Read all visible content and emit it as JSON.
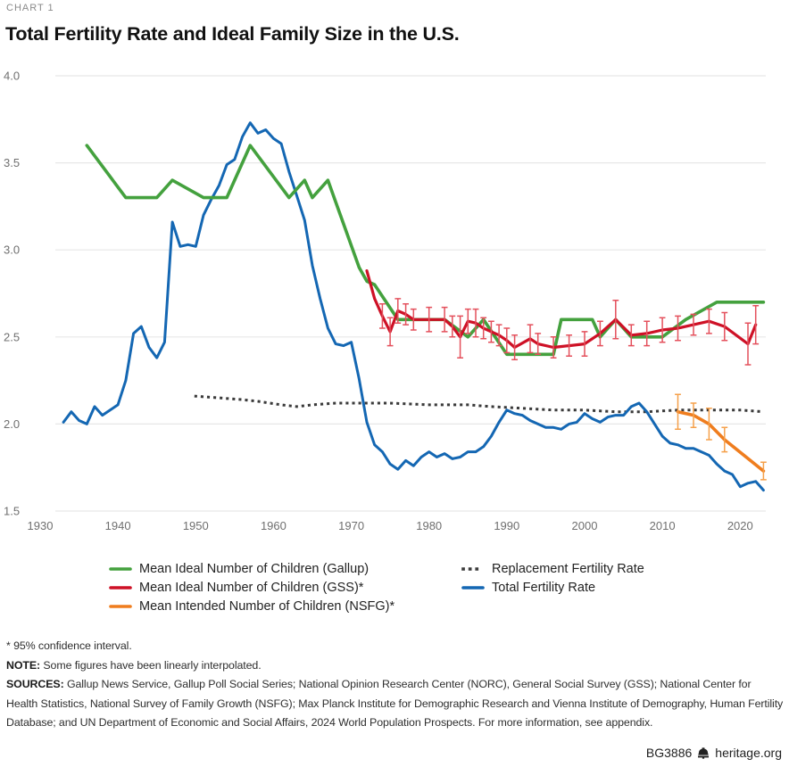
{
  "header": {
    "kicker": "CHART 1",
    "title": "Total Fertility Rate and Ideal Family Size in the U.S."
  },
  "chart_data": {
    "type": "line",
    "title": "Total Fertility Rate and Ideal Family Size in the U.S.",
    "xlabel": "",
    "ylabel": "",
    "xlim": [
      1930,
      2024
    ],
    "ylim": [
      1.5,
      4.0
    ],
    "x_ticks": [
      1930,
      1940,
      1950,
      1960,
      1970,
      1980,
      1990,
      2000,
      2010,
      2020
    ],
    "y_ticks": [
      4.0,
      3.5,
      3.0,
      2.5,
      2.0,
      1.5
    ],
    "grid": "horizontal-only",
    "legend_position": "bottom",
    "series": [
      {
        "name": "Mean Ideal Number of Children (Gallup)",
        "slug": "gallup-ideal",
        "color": "#44a13e",
        "style": "solid",
        "width": 3.6,
        "points": [
          [
            1936,
            3.6
          ],
          [
            1941,
            3.3
          ],
          [
            1945,
            3.3
          ],
          [
            1947,
            3.4
          ],
          [
            1951,
            3.3
          ],
          [
            1954,
            3.3
          ],
          [
            1957,
            3.6
          ],
          [
            1962,
            3.3
          ],
          [
            1964,
            3.4
          ],
          [
            1965,
            3.3
          ],
          [
            1967,
            3.4
          ],
          [
            1971,
            2.9
          ],
          [
            1972,
            2.82
          ],
          [
            1973,
            2.8
          ],
          [
            1976,
            2.6
          ],
          [
            1982,
            2.6
          ],
          [
            1985,
            2.5
          ],
          [
            1987,
            2.6
          ],
          [
            1990,
            2.4
          ],
          [
            1996,
            2.4
          ],
          [
            1997,
            2.6
          ],
          [
            2001,
            2.6
          ],
          [
            2002,
            2.5
          ],
          [
            2004,
            2.6
          ],
          [
            2006,
            2.5
          ],
          [
            2010,
            2.5
          ],
          [
            2013,
            2.6
          ],
          [
            2017,
            2.7
          ],
          [
            2023,
            2.7
          ]
        ]
      },
      {
        "name": "Mean Ideal Number of Children (GSS)*",
        "slug": "gss-ideal",
        "color": "#ce1126",
        "error_color": "#e4505c",
        "style": "solid",
        "width": 3.2,
        "points": [
          [
            1972,
            2.88
          ],
          [
            1973,
            2.72
          ],
          [
            1974,
            2.62
          ],
          [
            1975,
            2.53
          ],
          [
            1976,
            2.65
          ],
          [
            1977,
            2.63
          ],
          [
            1978,
            2.6
          ],
          [
            1980,
            2.6
          ],
          [
            1982,
            2.6
          ],
          [
            1983,
            2.56
          ],
          [
            1984,
            2.5
          ],
          [
            1985,
            2.59
          ],
          [
            1986,
            2.58
          ],
          [
            1987,
            2.55
          ],
          [
            1988,
            2.53
          ],
          [
            1989,
            2.51
          ],
          [
            1990,
            2.48
          ],
          [
            1991,
            2.44
          ],
          [
            1993,
            2.49
          ],
          [
            1994,
            2.46
          ],
          [
            1996,
            2.44
          ],
          [
            1998,
            2.45
          ],
          [
            2000,
            2.46
          ],
          [
            2002,
            2.52
          ],
          [
            2004,
            2.6
          ],
          [
            2006,
            2.51
          ],
          [
            2008,
            2.52
          ],
          [
            2010,
            2.54
          ],
          [
            2012,
            2.55
          ],
          [
            2014,
            2.57
          ],
          [
            2016,
            2.59
          ],
          [
            2018,
            2.56
          ],
          [
            2021,
            2.46
          ],
          [
            2022,
            2.57
          ]
        ],
        "error_bars": [
          [
            1974,
            2.62,
            0.07
          ],
          [
            1975,
            2.53,
            0.08
          ],
          [
            1976,
            2.65,
            0.07
          ],
          [
            1977,
            2.63,
            0.06
          ],
          [
            1978,
            2.6,
            0.06
          ],
          [
            1980,
            2.6,
            0.07
          ],
          [
            1982,
            2.6,
            0.07
          ],
          [
            1983,
            2.56,
            0.06
          ],
          [
            1984,
            2.5,
            0.12
          ],
          [
            1985,
            2.59,
            0.07
          ],
          [
            1986,
            2.58,
            0.08
          ],
          [
            1987,
            2.55,
            0.06
          ],
          [
            1988,
            2.53,
            0.06
          ],
          [
            1989,
            2.51,
            0.06
          ],
          [
            1990,
            2.48,
            0.07
          ],
          [
            1991,
            2.44,
            0.07
          ],
          [
            1993,
            2.49,
            0.08
          ],
          [
            1994,
            2.46,
            0.06
          ],
          [
            1996,
            2.44,
            0.06
          ],
          [
            1998,
            2.45,
            0.06
          ],
          [
            2000,
            2.46,
            0.07
          ],
          [
            2002,
            2.52,
            0.07
          ],
          [
            2004,
            2.6,
            0.11
          ],
          [
            2006,
            2.51,
            0.06
          ],
          [
            2008,
            2.52,
            0.07
          ],
          [
            2010,
            2.54,
            0.07
          ],
          [
            2012,
            2.55,
            0.07
          ],
          [
            2014,
            2.57,
            0.06
          ],
          [
            2016,
            2.59,
            0.07
          ],
          [
            2018,
            2.56,
            0.08
          ],
          [
            2021,
            2.46,
            0.12
          ],
          [
            2022,
            2.57,
            0.11
          ]
        ]
      },
      {
        "name": "Mean Intended Number of Children (NSFG)*",
        "slug": "nsfg-intended",
        "color": "#ef7d1e",
        "error_color": "#f5a04a",
        "style": "solid",
        "width": 3.6,
        "points": [
          [
            2012,
            2.07
          ],
          [
            2014,
            2.05
          ],
          [
            2016,
            2.0
          ],
          [
            2018,
            1.91
          ],
          [
            2023,
            1.73
          ]
        ],
        "error_bars": [
          [
            2012,
            2.07,
            0.1
          ],
          [
            2014,
            2.05,
            0.07
          ],
          [
            2016,
            2.0,
            0.09
          ],
          [
            2018,
            1.91,
            0.07
          ],
          [
            2023,
            1.73,
            0.05
          ]
        ]
      },
      {
        "name": "Replacement Fertility Rate",
        "slug": "replacement-rate",
        "color": "#3a3a3a",
        "style": "dotted",
        "width": 3,
        "points": [
          [
            1950,
            2.16
          ],
          [
            1953,
            2.15
          ],
          [
            1956,
            2.14
          ],
          [
            1958,
            2.13
          ],
          [
            1961,
            2.11
          ],
          [
            1963,
            2.1
          ],
          [
            1965,
            2.11
          ],
          [
            1968,
            2.12
          ],
          [
            1975,
            2.12
          ],
          [
            1980,
            2.11
          ],
          [
            1985,
            2.11
          ],
          [
            1988,
            2.1
          ],
          [
            1992,
            2.09
          ],
          [
            1996,
            2.08
          ],
          [
            2000,
            2.08
          ],
          [
            2004,
            2.07
          ],
          [
            2008,
            2.07
          ],
          [
            2012,
            2.08
          ],
          [
            2016,
            2.08
          ],
          [
            2020,
            2.08
          ],
          [
            2023,
            2.07
          ]
        ]
      },
      {
        "name": "Total Fertility Rate",
        "slug": "total-fertility-rate",
        "color": "#1467b3",
        "style": "solid",
        "width": 3,
        "points": [
          [
            1933,
            2.01
          ],
          [
            1934,
            2.07
          ],
          [
            1935,
            2.02
          ],
          [
            1936,
            2.0
          ],
          [
            1937,
            2.1
          ],
          [
            1938,
            2.05
          ],
          [
            1939,
            2.08
          ],
          [
            1940,
            2.11
          ],
          [
            1941,
            2.25
          ],
          [
            1942,
            2.52
          ],
          [
            1943,
            2.56
          ],
          [
            1944,
            2.44
          ],
          [
            1945,
            2.38
          ],
          [
            1946,
            2.47
          ],
          [
            1947,
            3.16
          ],
          [
            1948,
            3.02
          ],
          [
            1949,
            3.03
          ],
          [
            1950,
            3.02
          ],
          [
            1951,
            3.2
          ],
          [
            1952,
            3.29
          ],
          [
            1953,
            3.37
          ],
          [
            1954,
            3.49
          ],
          [
            1955,
            3.52
          ],
          [
            1956,
            3.65
          ],
          [
            1957,
            3.73
          ],
          [
            1958,
            3.67
          ],
          [
            1959,
            3.69
          ],
          [
            1960,
            3.64
          ],
          [
            1961,
            3.61
          ],
          [
            1962,
            3.45
          ],
          [
            1963,
            3.31
          ],
          [
            1964,
            3.17
          ],
          [
            1965,
            2.91
          ],
          [
            1966,
            2.72
          ],
          [
            1967,
            2.55
          ],
          [
            1968,
            2.46
          ],
          [
            1969,
            2.45
          ],
          [
            1970,
            2.47
          ],
          [
            1971,
            2.26
          ],
          [
            1972,
            2.01
          ],
          [
            1973,
            1.88
          ],
          [
            1974,
            1.84
          ],
          [
            1975,
            1.77
          ],
          [
            1976,
            1.74
          ],
          [
            1977,
            1.79
          ],
          [
            1978,
            1.76
          ],
          [
            1979,
            1.81
          ],
          [
            1980,
            1.84
          ],
          [
            1981,
            1.81
          ],
          [
            1982,
            1.83
          ],
          [
            1983,
            1.8
          ],
          [
            1984,
            1.81
          ],
          [
            1985,
            1.84
          ],
          [
            1986,
            1.84
          ],
          [
            1987,
            1.87
          ],
          [
            1988,
            1.93
          ],
          [
            1989,
            2.01
          ],
          [
            1990,
            2.08
          ],
          [
            1991,
            2.06
          ],
          [
            1992,
            2.05
          ],
          [
            1993,
            2.02
          ],
          [
            1994,
            2.0
          ],
          [
            1995,
            1.98
          ],
          [
            1996,
            1.98
          ],
          [
            1997,
            1.97
          ],
          [
            1998,
            2.0
          ],
          [
            1999,
            2.01
          ],
          [
            2000,
            2.06
          ],
          [
            2001,
            2.03
          ],
          [
            2002,
            2.01
          ],
          [
            2003,
            2.04
          ],
          [
            2004,
            2.05
          ],
          [
            2005,
            2.05
          ],
          [
            2006,
            2.1
          ],
          [
            2007,
            2.12
          ],
          [
            2008,
            2.07
          ],
          [
            2009,
            2.0
          ],
          [
            2010,
            1.93
          ],
          [
            2011,
            1.89
          ],
          [
            2012,
            1.88
          ],
          [
            2013,
            1.86
          ],
          [
            2014,
            1.86
          ],
          [
            2015,
            1.84
          ],
          [
            2016,
            1.82
          ],
          [
            2017,
            1.77
          ],
          [
            2018,
            1.73
          ],
          [
            2019,
            1.71
          ],
          [
            2020,
            1.64
          ],
          [
            2021,
            1.66
          ],
          [
            2022,
            1.67
          ],
          [
            2023,
            1.62
          ]
        ]
      }
    ]
  },
  "legend": {
    "columns": [
      [
        0,
        1,
        2
      ],
      [
        3,
        4
      ]
    ]
  },
  "footnotes": {
    "confidence": "* 95% confidence interval.",
    "note_label": "NOTE:",
    "note_text": "Some figures have been linearly interpolated.",
    "sources_label": "SOURCES:",
    "sources_text": "Gallup News Service, Gallup Poll Social Series; National Opinion Research Center (NORC), General Social Survey (GSS); National Center for Health Statistics, National Survey of Family Growth (NSFG); Max Planck Institute for Demographic Research and Vienna Institute of Demography, Human Fertility Database; and UN Department of Economic and Social Affairs, 2024 World Population Prospects. For more information, see appendix."
  },
  "footer": {
    "report_id": "BG3886",
    "site": "heritage.org",
    "icon": "liberty-bell-icon"
  }
}
